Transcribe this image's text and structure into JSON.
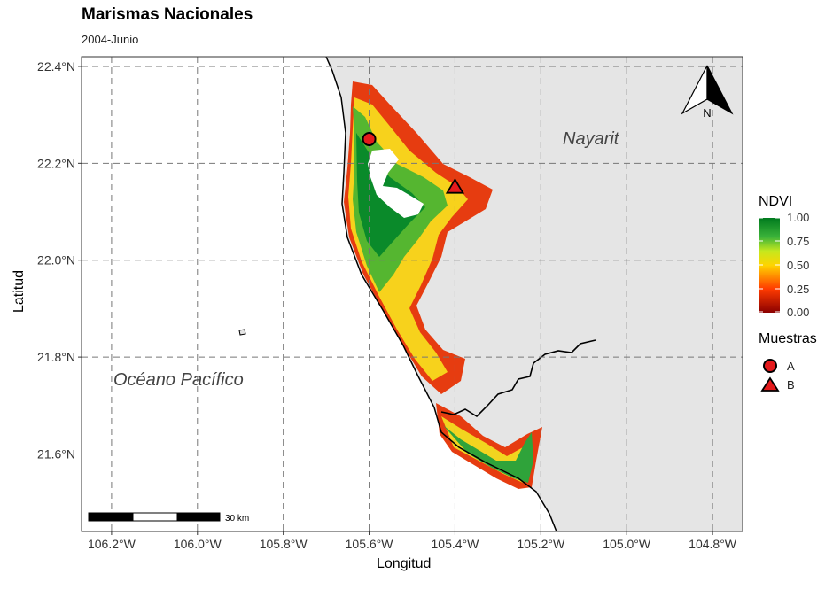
{
  "title": "Marismas Nacionales",
  "subtitle": "2004-Junio",
  "axes": {
    "xlabel": "Longitud",
    "ylabel": "Latitud",
    "x_ticks": [
      "106.2°W",
      "106.0°W",
      "105.8°W",
      "105.6°W",
      "105.4°W",
      "105.2°W",
      "105.0°W",
      "104.8°W"
    ],
    "y_ticks": [
      "22.4°N",
      "22.2°N",
      "22.0°N",
      "21.8°N",
      "21.6°N"
    ],
    "x_range": [
      -106.27,
      -104.73
    ],
    "y_range": [
      21.44,
      22.42
    ]
  },
  "labels": {
    "land": "Nayarit",
    "ocean": "Océano Pacífico"
  },
  "north_arrow": {
    "label": "N"
  },
  "scale_bar": {
    "label": "30 km"
  },
  "legend": {
    "ndvi_title": "NDVI",
    "ndvi_ticks": [
      "1.00",
      "0.75",
      "0.50",
      "0.25",
      "0.00"
    ],
    "ndvi_colors": [
      "#8b0000",
      "#ff3b00",
      "#ffd400",
      "#c5e81e",
      "#3bb33a",
      "#007a1e"
    ],
    "samples_title": "Muestras",
    "samples": [
      {
        "label": "A",
        "shape": "circle",
        "lon": -105.6,
        "lat": 22.25
      },
      {
        "label": "B",
        "shape": "triangle",
        "lon": -105.4,
        "lat": 22.15
      }
    ]
  },
  "colors": {
    "land": "#e5e5e5",
    "ocean": "#ffffff",
    "marker_fill": "#e41a1c"
  }
}
